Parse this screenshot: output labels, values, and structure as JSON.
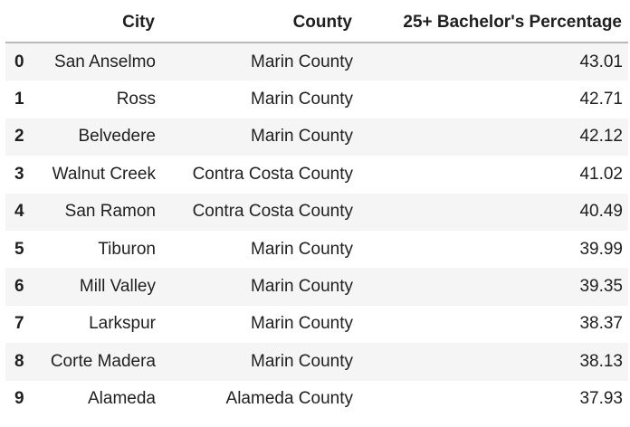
{
  "table": {
    "headers": {
      "index": "",
      "city": "City",
      "county": "County",
      "pct": "25+ Bachelor's Percentage"
    },
    "rows": [
      {
        "index": "0",
        "city": "San Anselmo",
        "county": "Marin County",
        "pct": "43.01"
      },
      {
        "index": "1",
        "city": "Ross",
        "county": "Marin County",
        "pct": "42.71"
      },
      {
        "index": "2",
        "city": "Belvedere",
        "county": "Marin County",
        "pct": "42.12"
      },
      {
        "index": "3",
        "city": "Walnut Creek",
        "county": "Contra Costa County",
        "pct": "41.02"
      },
      {
        "index": "4",
        "city": "San Ramon",
        "county": "Contra Costa County",
        "pct": "40.49"
      },
      {
        "index": "5",
        "city": "Tiburon",
        "county": "Marin County",
        "pct": "39.99"
      },
      {
        "index": "6",
        "city": "Mill Valley",
        "county": "Marin County",
        "pct": "39.35"
      },
      {
        "index": "7",
        "city": "Larkspur",
        "county": "Marin County",
        "pct": "38.37"
      },
      {
        "index": "8",
        "city": "Corte Madera",
        "county": "Marin County",
        "pct": "38.13"
      },
      {
        "index": "9",
        "city": "Alameda",
        "county": "Alameda County",
        "pct": "37.93"
      }
    ]
  }
}
